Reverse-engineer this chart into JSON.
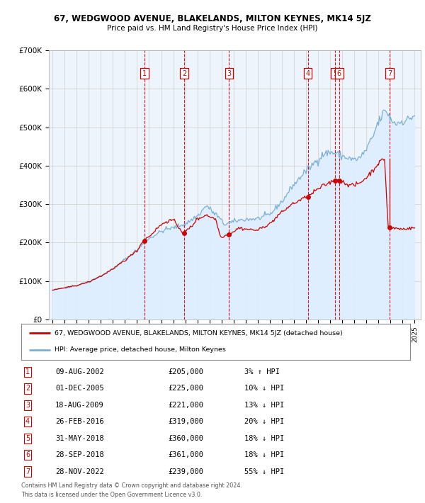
{
  "title": "67, WEDGWOOD AVENUE, BLAKELANDS, MILTON KEYNES, MK14 5JZ",
  "subtitle": "Price paid vs. HM Land Registry's House Price Index (HPI)",
  "legend_line1": "67, WEDGWOOD AVENUE, BLAKELANDS, MILTON KEYNES, MK14 5JZ (detached house)",
  "legend_line2": "HPI: Average price, detached house, Milton Keynes",
  "footer1": "Contains HM Land Registry data © Crown copyright and database right 2024.",
  "footer2": "This data is licensed under the Open Government Licence v3.0.",
  "sale_color": "#cc0000",
  "hpi_color": "#7aafd4",
  "hpi_fill_color": "#ddeeff",
  "grid_color": "#cccccc",
  "dashed_line_color": "#cc0000",
  "ylim": [
    0,
    700000
  ],
  "yticks": [
    0,
    100000,
    200000,
    300000,
    400000,
    500000,
    600000,
    700000
  ],
  "ytick_labels": [
    "£0",
    "£100K",
    "£200K",
    "£300K",
    "£400K",
    "£500K",
    "£600K",
    "£700K"
  ],
  "xlim_start": 1994.7,
  "xlim_end": 2025.5,
  "transactions": [
    {
      "num": 1,
      "date_str": "09-AUG-2002",
      "date_float": 2002.608,
      "price": 205000
    },
    {
      "num": 2,
      "date_str": "01-DEC-2005",
      "date_float": 2005.916,
      "price": 225000
    },
    {
      "num": 3,
      "date_str": "18-AUG-2009",
      "date_float": 2009.63,
      "price": 221000
    },
    {
      "num": 4,
      "date_str": "26-FEB-2016",
      "date_float": 2016.152,
      "price": 319000
    },
    {
      "num": 5,
      "date_str": "31-MAY-2018",
      "date_float": 2018.413,
      "price": 360000
    },
    {
      "num": 6,
      "date_str": "28-SEP-2018",
      "date_float": 2018.742,
      "price": 361000
    },
    {
      "num": 7,
      "date_str": "28-NOV-2022",
      "date_float": 2022.908,
      "price": 239000
    }
  ],
  "table_rows": [
    {
      "num": 1,
      "date": "09-AUG-2002",
      "price": "£205,000",
      "pct_hpi": "3% ↑ HPI"
    },
    {
      "num": 2,
      "date": "01-DEC-2005",
      "price": "£225,000",
      "pct_hpi": "10% ↓ HPI"
    },
    {
      "num": 3,
      "date": "18-AUG-2009",
      "price": "£221,000",
      "pct_hpi": "13% ↓ HPI"
    },
    {
      "num": 4,
      "date": "26-FEB-2016",
      "price": "£319,000",
      "pct_hpi": "20% ↓ HPI"
    },
    {
      "num": 5,
      "date": "31-MAY-2018",
      "price": "£360,000",
      "pct_hpi": "18% ↓ HPI"
    },
    {
      "num": 6,
      "date": "28-SEP-2018",
      "price": "£361,000",
      "pct_hpi": "18% ↓ HPI"
    },
    {
      "num": 7,
      "date": "28-NOV-2022",
      "price": "£239,000",
      "pct_hpi": "55% ↓ HPI"
    }
  ]
}
